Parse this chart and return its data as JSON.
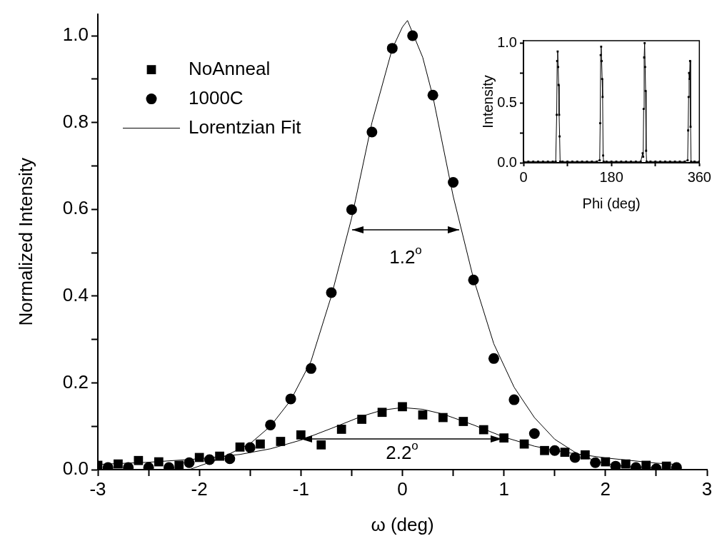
{
  "chart_data": [
    {
      "type": "scatter",
      "xlabel": "ω (deg)",
      "ylabel": "Normalized Intensity",
      "xlim": [
        -3,
        3
      ],
      "ylim": [
        0,
        1.05
      ],
      "xticks": [
        -3,
        {
          "value": -2.5,
          "label": null
        },
        -2,
        {
          "value": -1.5,
          "label": null
        },
        -1,
        {
          "value": -0.5,
          "label": null
        },
        0,
        {
          "value": 0.5,
          "label": null
        },
        1,
        {
          "value": 1.5,
          "label": null
        },
        2,
        {
          "value": 2.5,
          "label": null
        },
        3
      ],
      "yticks": [
        {
          "value": 0,
          "label": "0.0"
        },
        {
          "value": 0.1,
          "label": null
        },
        {
          "value": 0.2,
          "label": "0.2"
        },
        {
          "value": 0.3,
          "label": null
        },
        {
          "value": 0.4,
          "label": "0.4"
        },
        {
          "value": 0.5,
          "label": null
        },
        {
          "value": 0.6,
          "label": "0.6"
        },
        {
          "value": 0.7,
          "label": null
        },
        {
          "value": 0.8,
          "label": "0.8"
        },
        {
          "value": 0.9,
          "label": null
        },
        {
          "value": 1,
          "label": "1.0"
        }
      ],
      "grid": false,
      "legend": "top left",
      "annotations": [
        "1.2$^{o}$",
        "2.2$^{o}$"
      ],
      "series": [
        {
          "name": "NoAnneal",
          "marker": "square",
          "color": "#000000",
          "x": [
            -3,
            -2.8,
            -2.6,
            -2.4,
            -2.2,
            -2,
            -1.8,
            -1.6,
            -1.4,
            -1.2,
            -1,
            -0.8,
            -0.6,
            -0.4,
            -0.2,
            0,
            0.2,
            0.4,
            0.6,
            0.8,
            1,
            1.2,
            1.4,
            1.6,
            1.8,
            2,
            2.2,
            2.4,
            2.6
          ],
          "values": [
            0.01,
            0.013,
            0.021,
            0.018,
            0.01,
            0.028,
            0.031,
            0.052,
            0.059,
            0.065,
            0.08,
            0.057,
            0.093,
            0.116,
            0.132,
            0.145,
            0.126,
            0.12,
            0.111,
            0.092,
            0.073,
            0.059,
            0.044,
            0.04,
            0.034,
            0.018,
            0.013,
            0.01,
            0.008
          ]
        },
        {
          "name": "1000C",
          "marker": "circle",
          "color": "#000000",
          "x": [
            -2.9,
            -2.7,
            -2.5,
            -2.3,
            -2.1,
            -1.9,
            -1.7,
            -1.5,
            -1.3,
            -1.1,
            -0.9,
            -0.7,
            -0.5,
            -0.3,
            -0.1,
            0.1,
            0.3,
            0.5,
            0.7,
            0.9,
            1.1,
            1.3,
            1.5,
            1.7,
            1.9,
            2.1,
            2.3,
            2.5,
            2.7
          ],
          "values": [
            0.005,
            0.005,
            0.005,
            0.005,
            0.016,
            0.023,
            0.025,
            0.051,
            0.103,
            0.163,
            0.233,
            0.408,
            0.599,
            0.778,
            0.971,
            1.0,
            0.863,
            0.662,
            0.437,
            0.256,
            0.161,
            0.083,
            0.044,
            0.028,
            0.016,
            0.008,
            0.005,
            0.002,
            0.005
          ]
        },
        {
          "name": "Lorentzian Fit",
          "type": "line",
          "marker": "none",
          "line_style": "solid",
          "color": "#000000",
          "x": [
            -2.1,
            -1.8,
            -1.5,
            -1.3,
            -1.1,
            -0.9,
            -0.7,
            -0.5,
            -0.3,
            -0.1,
            0,
            0.05,
            0.2,
            0.3,
            0.5,
            0.7,
            0.9,
            1.1,
            1.3,
            1.5,
            1.7,
            1.9,
            2.1,
            2.5
          ],
          "values": [
            0.0,
            0.025,
            0.06,
            0.1,
            0.16,
            0.25,
            0.4,
            0.58,
            0.8,
            0.97,
            1.02,
            1.035,
            0.95,
            0.86,
            0.63,
            0.44,
            0.29,
            0.19,
            0.12,
            0.07,
            0.04,
            0.02,
            0.01,
            0.004
          ]
        },
        {
          "type": "line",
          "marker": "none",
          "line_style": "solid",
          "color": "#000000",
          "x": [
            -3,
            -2.5,
            -2,
            -1.6,
            -1.3,
            -1,
            -0.7,
            -0.4,
            -0.2,
            0,
            0.2,
            0.4,
            0.7,
            1,
            1.3,
            1.6,
            2,
            2.5,
            2.7
          ],
          "values": [
            0.012,
            0.017,
            0.025,
            0.035,
            0.048,
            0.068,
            0.095,
            0.123,
            0.137,
            0.143,
            0.139,
            0.128,
            0.103,
            0.075,
            0.054,
            0.04,
            0.027,
            0.015,
            0.012
          ]
        }
      ]
    },
    {
      "type": "line",
      "xlabel": "Phi (deg)",
      "ylabel": "Intensity",
      "xlim": [
        0,
        360
      ],
      "ylim": [
        0,
        1.02
      ],
      "xticks": [
        0,
        {
          "value": 90,
          "label": null
        },
        180,
        {
          "value": 270,
          "label": null
        },
        360
      ],
      "yticks": [
        {
          "value": 0,
          "label": "0.0"
        },
        {
          "value": 0.25,
          "label": null
        },
        {
          "value": 0.5,
          "label": "0.5"
        },
        {
          "value": 0.75,
          "label": null
        },
        {
          "value": 1,
          "label": "1.0"
        }
      ],
      "grid": false,
      "marker": "square",
      "line_style": "solid",
      "series": [
        {
          "color": "#000000",
          "x": [
            0,
            10,
            20,
            30,
            40,
            50,
            60,
            66,
            68,
            69,
            70,
            71,
            72,
            73,
            74,
            75,
            80,
            90,
            100,
            110,
            120,
            130,
            140,
            150,
            156,
            157,
            158,
            159,
            160,
            161,
            162,
            163,
            164,
            170,
            180,
            190,
            200,
            210,
            220,
            230,
            240,
            244,
            245,
            246,
            247,
            248,
            249,
            250,
            251,
            252,
            260,
            270,
            280,
            290,
            300,
            310,
            320,
            330,
            336,
            337,
            338,
            339,
            340,
            341,
            342,
            343,
            350,
            360
          ],
          "values": [
            0.01,
            0.01,
            0.01,
            0.01,
            0.01,
            0.01,
            0.01,
            0.01,
            0.4,
            0.85,
            0.93,
            0.8,
            0.65,
            0.4,
            0.22,
            0.01,
            0.01,
            0.01,
            0.01,
            0.01,
            0.01,
            0.01,
            0.01,
            0.01,
            0.02,
            0.33,
            0.9,
            0.97,
            0.85,
            0.7,
            0.55,
            0.06,
            0.01,
            0.01,
            0.01,
            0.01,
            0.01,
            0.01,
            0.01,
            0.01,
            0.01,
            0.08,
            0.05,
            0.45,
            0.88,
            1.0,
            0.8,
            0.6,
            0.1,
            0.01,
            0.01,
            0.01,
            0.01,
            0.01,
            0.01,
            0.01,
            0.01,
            0.01,
            0.02,
            0.27,
            0.55,
            0.75,
            0.7,
            0.85,
            0.3,
            0.01,
            0.01,
            0.01
          ]
        }
      ]
    }
  ]
}
